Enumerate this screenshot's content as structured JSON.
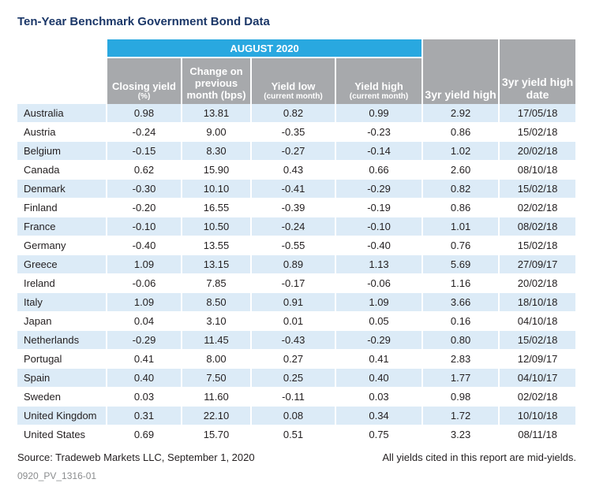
{
  "title": "Ten-Year Benchmark Government Bond Data",
  "table": {
    "group_header": "AUGUST 2020",
    "columns": [
      {
        "label": "Closing yield",
        "sub": "(%)"
      },
      {
        "label": "Change on previous month (bps)"
      },
      {
        "label": "Yield low",
        "sub": "(current month)"
      },
      {
        "label": "Yield high",
        "sub": "(current month)"
      },
      {
        "label": "3yr yield high"
      },
      {
        "label": "3yr yield high date"
      }
    ],
    "rows": [
      [
        "Australia",
        "0.98",
        "13.81",
        "0.82",
        "0.99",
        "2.92",
        "17/05/18"
      ],
      [
        "Austria",
        "-0.24",
        "9.00",
        "-0.35",
        "-0.23",
        "0.86",
        "15/02/18"
      ],
      [
        "Belgium",
        "-0.15",
        "8.30",
        "-0.27",
        "-0.14",
        "1.02",
        "20/02/18"
      ],
      [
        "Canada",
        "0.62",
        "15.90",
        "0.43",
        "0.66",
        "2.60",
        "08/10/18"
      ],
      [
        "Denmark",
        "-0.30",
        "10.10",
        "-0.41",
        "-0.29",
        "0.82",
        "15/02/18"
      ],
      [
        "Finland",
        "-0.20",
        "16.55",
        "-0.39",
        "-0.19",
        "0.86",
        "02/02/18"
      ],
      [
        "France",
        "-0.10",
        "10.50",
        "-0.24",
        "-0.10",
        "1.01",
        "08/02/18"
      ],
      [
        "Germany",
        "-0.40",
        "13.55",
        "-0.55",
        "-0.40",
        "0.76",
        "15/02/18"
      ],
      [
        "Greece",
        "1.09",
        "13.15",
        "0.89",
        "1.13",
        "5.69",
        "27/09/17"
      ],
      [
        "Ireland",
        "-0.06",
        "7.85",
        "-0.17",
        "-0.06",
        "1.16",
        "20/02/18"
      ],
      [
        "Italy",
        "1.09",
        "8.50",
        "0.91",
        "1.09",
        "3.66",
        "18/10/18"
      ],
      [
        "Japan",
        "0.04",
        "3.10",
        "0.01",
        "0.05",
        "0.16",
        "04/10/18"
      ],
      [
        "Netherlands",
        "-0.29",
        "11.45",
        "-0.43",
        "-0.29",
        "0.80",
        "15/02/18"
      ],
      [
        "Portugal",
        "0.41",
        "8.00",
        "0.27",
        "0.41",
        "2.83",
        "12/09/17"
      ],
      [
        "Spain",
        "0.40",
        "7.50",
        "0.25",
        "0.40",
        "1.77",
        "04/10/17"
      ],
      [
        "Sweden",
        "0.03",
        "11.60",
        "-0.11",
        "0.03",
        "0.98",
        "02/02/18"
      ],
      [
        "United Kingdom",
        "0.31",
        "22.10",
        "0.08",
        "0.34",
        "1.72",
        "10/10/18"
      ],
      [
        "United States",
        "0.69",
        "15.70",
        "0.51",
        "0.75",
        "3.23",
        "08/11/18"
      ]
    ]
  },
  "footer": {
    "source": "Source: Tradeweb Markets LLC, September 1, 2020",
    "note": "All yields cited in this report are mid-yields.",
    "code": "0920_PV_1316-01"
  }
}
